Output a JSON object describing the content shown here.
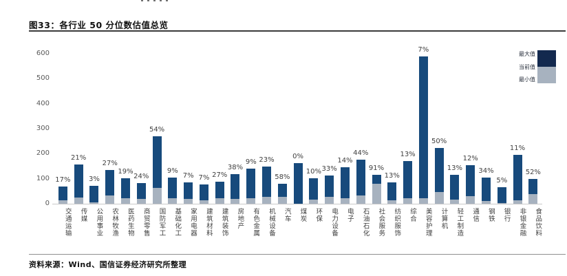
{
  "figure": {
    "title": "图33：各行业 50 分位数估值总览",
    "source": "资料来源：Wind、国信证券经济研究所整理"
  },
  "colors": {
    "bar_max": "#174a7c",
    "bar_min_segment": "#a7b2bf",
    "legend_max_block": "#13294e",
    "legend_min_block": "#a7b2bf",
    "axis_line": "#c9c9c9",
    "tick_text": "#595959"
  },
  "chart_data": {
    "type": "bar",
    "title": "图33：各行业 50 分位数估值总览",
    "xlabel": "",
    "ylabel": "",
    "ylim": [
      0,
      600
    ],
    "yticks": [
      0,
      100,
      200,
      300,
      400,
      500,
      600
    ],
    "grid": false,
    "legend_position": "top-right",
    "legend_labels": {
      "max": "最大值",
      "current": "当前值",
      "min": "最小值"
    },
    "categories": [
      "交通运输",
      "传媒",
      "公用事业",
      "农林牧渔",
      "医药生物",
      "商贸零售",
      "国防军工",
      "基础化工",
      "家用电器",
      "建筑材料",
      "建筑装饰",
      "房地产",
      "有色金属",
      "机械设备",
      "汽车",
      "煤炭",
      "环保",
      "电力设备",
      "电子",
      "石油石化",
      "社会服务",
      "纺织服饰",
      "综合",
      "美容护理",
      "计算机",
      "轻工制造",
      "通信",
      "钢铁",
      "银行",
      "非银金融",
      "食品饮料"
    ],
    "bar_percentile_labels": [
      "17%",
      "21%",
      "3%",
      "27%",
      "19%",
      "24%",
      "54%",
      "9%",
      "7%",
      "7%",
      "27%",
      "38%",
      "9%",
      "23%",
      "58%",
      "0%",
      "10%",
      "33%",
      "14%",
      "44%",
      "91%",
      "13%",
      "13%",
      "7%",
      "50%",
      "13%",
      "12%",
      "34%",
      "5%",
      "11%",
      "52%"
    ],
    "series": [
      {
        "name": "最大值",
        "role": "total-bar-height",
        "values": [
          69,
          157,
          71,
          136,
          103,
          82,
          270,
          105,
          86,
          78,
          88,
          118,
          140,
          148,
          80,
          163,
          103,
          113,
          145,
          175,
          116,
          85,
          170,
          590,
          222,
          115,
          155,
          105,
          65,
          195,
          98
        ]
      },
      {
        "name": "当前值",
        "role": "gray-bottom-segment-top",
        "values": [
          15,
          26,
          5,
          32,
          22,
          20,
          62,
          22,
          18,
          15,
          22,
          19,
          22,
          27,
          28,
          0,
          16,
          27,
          22,
          33,
          80,
          14,
          21,
          22,
          48,
          16,
          30,
          11,
          4,
          14,
          38
        ]
      }
    ]
  }
}
